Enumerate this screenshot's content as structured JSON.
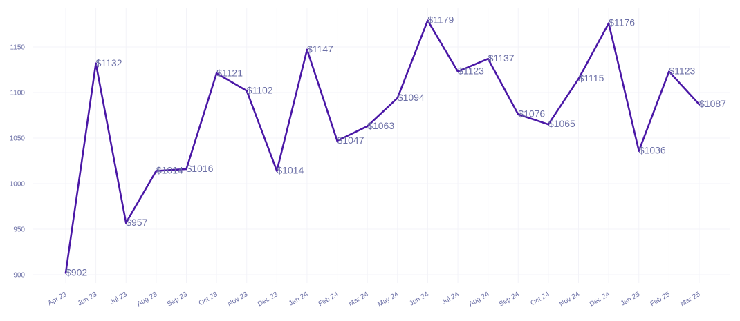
{
  "chart_data": {
    "type": "line",
    "title": "",
    "xlabel": "",
    "ylabel": "",
    "categories": [
      "Apr 23",
      "Jun 23",
      "Jul 23",
      "Aug 23",
      "Sep 23",
      "Oct 23",
      "Nov 23",
      "Dec 23",
      "Jan 24",
      "Feb 24",
      "Mar 24",
      "May 24",
      "Jun 24",
      "Jul 24",
      "Aug 24",
      "Sep 24",
      "Oct 24",
      "Nov 24",
      "Dec 24",
      "Jan 25",
      "Feb 25",
      "Mar 25"
    ],
    "series": [
      {
        "name": "Value",
        "values": [
          902,
          1132,
          957,
          1014,
          1016,
          1121,
          1102,
          1014,
          1147,
          1047,
          1063,
          1094,
          1179,
          1123,
          1137,
          1076,
          1065,
          1115,
          1176,
          1036,
          1123,
          1087
        ],
        "data_labels": [
          "$902",
          "$1132",
          "$957",
          "$1014",
          "$1016",
          "$1121",
          "$1102",
          "$1014",
          "$1147",
          "$1047",
          "$1063",
          "$1094",
          "$1179",
          "$1123",
          "$1137",
          "$1076",
          "$1065",
          "$1115",
          "$1176",
          "$1036",
          "$1123",
          "$1087"
        ]
      }
    ],
    "y_ticks": [
      900,
      950,
      1000,
      1050,
      1100,
      1150
    ],
    "y_tick_labels": [
      "900",
      "950",
      "1000",
      "1050",
      "1100",
      "1150"
    ],
    "ylim": [
      890,
      1190
    ],
    "grid": true,
    "legend": "none",
    "colors": {
      "line": "#4a17a6",
      "text": "#6b6fa6",
      "grid": "#f3f3f8"
    }
  }
}
